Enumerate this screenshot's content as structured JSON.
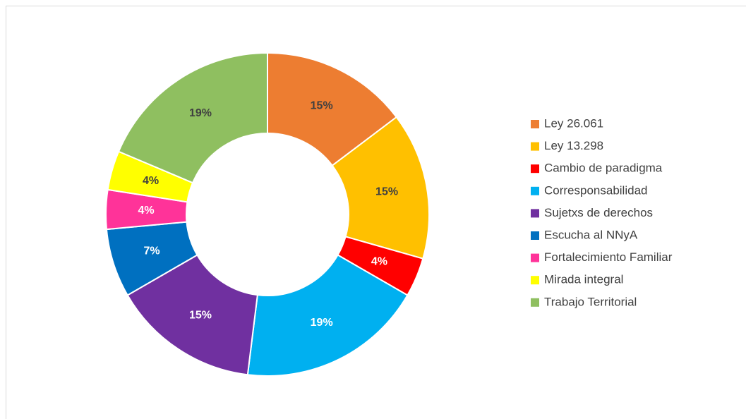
{
  "chart_data": {
    "type": "donut",
    "categories": [
      "Ley 26.061",
      "Ley 13.298",
      "Cambio de paradigma",
      "Corresponsabilidad",
      "Sujetxs de derechos",
      "Escucha al NNyA",
      "Fortalecimiento Familiar",
      "Mirada integral",
      "Trabajo Territorial"
    ],
    "values": [
      15,
      15,
      4,
      19,
      15,
      7,
      4,
      4,
      19
    ],
    "value_labels": [
      "15%",
      "15%",
      "4%",
      "19%",
      "15%",
      "7%",
      "4%",
      "4%",
      "19%"
    ],
    "colors": [
      "#ed7d31",
      "#ffc000",
      "#ff0000",
      "#00b0f0",
      "#7030a0",
      "#0070c0",
      "#ff3399",
      "#ffff00",
      "#8fbf60"
    ],
    "legend": "right"
  }
}
